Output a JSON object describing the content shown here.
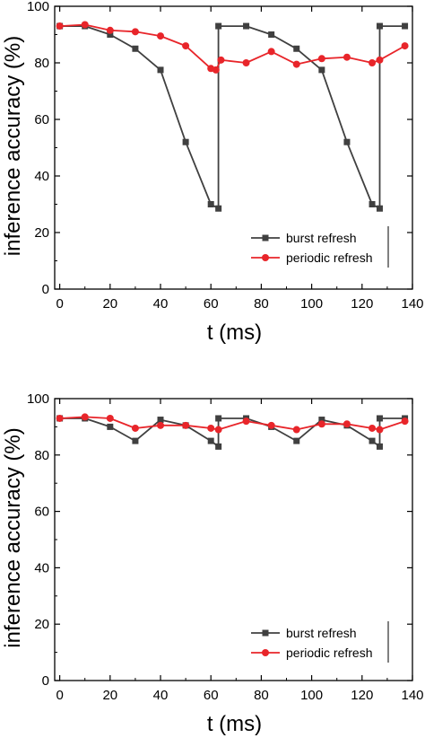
{
  "chart_data": [
    {
      "type": "line",
      "xlabel": "t (ms)",
      "ylabel": "inference accuracy (%)",
      "xlim": [
        -2,
        140
      ],
      "ylim": [
        0,
        100
      ],
      "x_ticks": [
        0,
        20,
        40,
        60,
        80,
        100,
        120,
        140
      ],
      "y_ticks": [
        0,
        20,
        40,
        60,
        80,
        100
      ],
      "legend_position": "bottom-right",
      "grid": false,
      "series": [
        {
          "name": "burst refresh",
          "color": "#404040",
          "marker": "square",
          "points": [
            [
              0,
              93
            ],
            [
              10,
              93
            ],
            [
              20,
              90
            ],
            [
              30,
              85
            ],
            [
              40,
              77.5
            ],
            [
              50,
              52
            ],
            [
              60,
              30
            ],
            [
              63,
              28.5
            ],
            [
              63,
              93
            ],
            [
              74,
              93
            ],
            [
              84,
              90
            ],
            [
              94,
              85
            ],
            [
              104,
              77.5
            ],
            [
              114,
              52
            ],
            [
              124,
              30
            ],
            [
              127,
              28.5
            ],
            [
              127,
              93
            ],
            [
              137,
              93
            ]
          ]
        },
        {
          "name": "periodic refresh",
          "color": "#e8252a",
          "marker": "circle",
          "points": [
            [
              0,
              93
            ],
            [
              10,
              93.5
            ],
            [
              20,
              91.5
            ],
            [
              30,
              91
            ],
            [
              40,
              89.5
            ],
            [
              50,
              86
            ],
            [
              60,
              78
            ],
            [
              62,
              77.5
            ],
            [
              64,
              81
            ],
            [
              74,
              80
            ],
            [
              84,
              84
            ],
            [
              94,
              79.5
            ],
            [
              104,
              81.5
            ],
            [
              114,
              82
            ],
            [
              124,
              80
            ],
            [
              127,
              81
            ],
            [
              137,
              86
            ]
          ]
        }
      ]
    },
    {
      "type": "line",
      "xlabel": "t (ms)",
      "ylabel": "inference accuracy (%)",
      "xlim": [
        -2,
        140
      ],
      "ylim": [
        0,
        100
      ],
      "x_ticks": [
        0,
        20,
        40,
        60,
        80,
        100,
        120,
        140
      ],
      "y_ticks": [
        0,
        20,
        40,
        60,
        80,
        100
      ],
      "legend_position": "bottom-right",
      "grid": false,
      "series": [
        {
          "name": "burst refresh",
          "color": "#404040",
          "marker": "square",
          "points": [
            [
              0,
              93
            ],
            [
              10,
              93
            ],
            [
              20,
              90
            ],
            [
              30,
              85
            ],
            [
              40,
              92.5
            ],
            [
              50,
              90.5
            ],
            [
              60,
              85
            ],
            [
              63,
              83
            ],
            [
              63,
              93
            ],
            [
              74,
              93
            ],
            [
              84,
              90
            ],
            [
              94,
              85
            ],
            [
              104,
              92.5
            ],
            [
              114,
              90.5
            ],
            [
              124,
              85
            ],
            [
              127,
              83
            ],
            [
              127,
              93
            ],
            [
              137,
              93
            ]
          ]
        },
        {
          "name": "periodic refresh",
          "color": "#e8252a",
          "marker": "circle",
          "points": [
            [
              0,
              93
            ],
            [
              10,
              93.5
            ],
            [
              20,
              93
            ],
            [
              30,
              89.5
            ],
            [
              40,
              90.5
            ],
            [
              50,
              90.5
            ],
            [
              60,
              89.5
            ],
            [
              63,
              89
            ],
            [
              74,
              92
            ],
            [
              84,
              90.5
            ],
            [
              94,
              89
            ],
            [
              104,
              91
            ],
            [
              114,
              91
            ],
            [
              124,
              89.5
            ],
            [
              127,
              89
            ],
            [
              137,
              92
            ]
          ]
        }
      ]
    }
  ]
}
